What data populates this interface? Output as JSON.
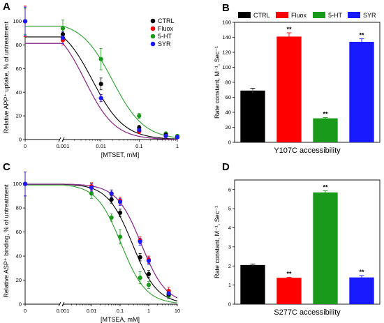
{
  "colors": {
    "CTRL": "#000000",
    "Fluox": "#ff0000",
    "5-HT": "#1a9a1a",
    "SYR": "#1a1aff",
    "curve_5ht": "#2ca02c",
    "curve_purple": "#8b2c8b"
  },
  "chart_data": [
    {
      "panel": "A",
      "type": "scatter",
      "xlabel": "[MTSET, mM]",
      "ylabel": "Relative APP⁺ uptake, % of untreatment",
      "xscale": "log",
      "xlim": [
        0.0001,
        1
      ],
      "ylim": [
        0,
        105
      ],
      "xticks": [
        "0",
        "0.001",
        "0.01",
        "0.1",
        "1"
      ],
      "yticks": [
        "0",
        "20",
        "40",
        "60",
        "80",
        "100"
      ],
      "legend_position": "top-right",
      "series": [
        {
          "name": "CTRL",
          "x": [
            0,
            0.001,
            0.01,
            0.1,
            0.5,
            1
          ],
          "y": [
            100,
            89,
            47,
            10,
            4,
            2
          ],
          "err": [
            12,
            4,
            5,
            2,
            1,
            1
          ],
          "ic50": 0.006,
          "slope": 1.05
        },
        {
          "name": "Fluox",
          "x": [
            0,
            0.001,
            0.01,
            0.1,
            0.5,
            1
          ],
          "y": [
            100,
            84,
            35,
            7,
            3,
            2
          ],
          "err": [
            13,
            4,
            3,
            2,
            1,
            1
          ],
          "ic50": 0.0038,
          "slope": 1.1
        },
        {
          "name": "5-HT",
          "x": [
            0,
            0.001,
            0.01,
            0.1,
            0.5,
            1
          ],
          "y": [
            100,
            94,
            68,
            20,
            5,
            3
          ],
          "err": [
            11,
            7,
            9,
            2,
            1,
            1
          ],
          "ic50": 0.02,
          "slope": 1.05
        },
        {
          "name": "SYR",
          "x": [
            0,
            0.001,
            0.01,
            0.1,
            0.5,
            1
          ],
          "y": [
            100,
            86,
            35,
            8,
            3,
            2
          ],
          "err": [
            12,
            5,
            3,
            2,
            1,
            1
          ],
          "ic50": 0.0038,
          "slope": 1.1
        }
      ]
    },
    {
      "panel": "B",
      "type": "bar",
      "title": "Y107C accessibility",
      "ylabel": "Rate constant, M⁻¹, Sec⁻¹",
      "ylim": [
        0,
        160
      ],
      "yticks": [
        "0",
        "20",
        "40",
        "60",
        "80",
        "100",
        "120",
        "140",
        "160"
      ],
      "legend_position": "top",
      "categories": [
        "CTRL",
        "Fluox",
        "5-HT",
        "SYR"
      ],
      "values": [
        69,
        141,
        32,
        134
      ],
      "errors": [
        3,
        5,
        1,
        4
      ],
      "significance": [
        "",
        "**",
        "**",
        "**"
      ]
    },
    {
      "panel": "C",
      "type": "scatter",
      "xlabel": "[MTSEA, mM]",
      "ylabel": "Relative ASP⁺ binding, % of untreatment",
      "xscale": "log",
      "xlim": [
        0.0001,
        10
      ],
      "ylim": [
        0,
        105
      ],
      "xticks": [
        "0",
        "0.001",
        "0.01",
        "0.1",
        "1",
        "10"
      ],
      "yticks": [
        "0",
        "20",
        "40",
        "60",
        "80",
        "100"
      ],
      "series": [
        {
          "name": "CTRL",
          "x": [
            0,
            0.01,
            0.05,
            0.1,
            0.5,
            1,
            5
          ],
          "y": [
            100,
            97,
            87,
            76,
            39,
            25,
            8
          ],
          "err": [
            10,
            3,
            3,
            3,
            3,
            3,
            3
          ],
          "ic50": 0.27,
          "slope": 1.0
        },
        {
          "name": "Fluox",
          "x": [
            0,
            0.01,
            0.05,
            0.1,
            0.5,
            1,
            5
          ],
          "y": [
            100,
            98,
            92,
            86,
            53,
            37,
            11
          ],
          "err": [
            10,
            3,
            3,
            3,
            3,
            3,
            3
          ],
          "ic50": 0.55,
          "slope": 1.0
        },
        {
          "name": "5-HT",
          "x": [
            0,
            0.01,
            0.05,
            0.1,
            0.5,
            1,
            5
          ],
          "y": [
            100,
            92,
            72,
            56,
            22,
            16,
            7
          ],
          "err": [
            10,
            4,
            3,
            6,
            5,
            3,
            2
          ],
          "ic50": 0.11,
          "slope": 1.0
        },
        {
          "name": "SYR",
          "x": [
            0,
            0.01,
            0.05,
            0.1,
            0.5,
            1,
            5
          ],
          "y": [
            100,
            97,
            92,
            85,
            52,
            36,
            9
          ],
          "err": [
            10,
            3,
            3,
            3,
            3,
            3,
            3
          ],
          "ic50": 0.55,
          "slope": 1.0
        }
      ]
    },
    {
      "panel": "D",
      "type": "bar",
      "title": "S277C accessibility",
      "ylabel": "Rate constant, M⁻¹, Sec⁻¹",
      "ylim": [
        0,
        6.5
      ],
      "yticks": [
        "0",
        "1",
        "2",
        "3",
        "4",
        "5",
        "6"
      ],
      "categories": [
        "CTRL",
        "Fluox",
        "5-HT",
        "SYR"
      ],
      "values": [
        2.05,
        1.38,
        5.85,
        1.4
      ],
      "errors": [
        0.05,
        0.03,
        0.08,
        0.1
      ],
      "significance": [
        "",
        "**",
        "**",
        "**"
      ]
    }
  ]
}
